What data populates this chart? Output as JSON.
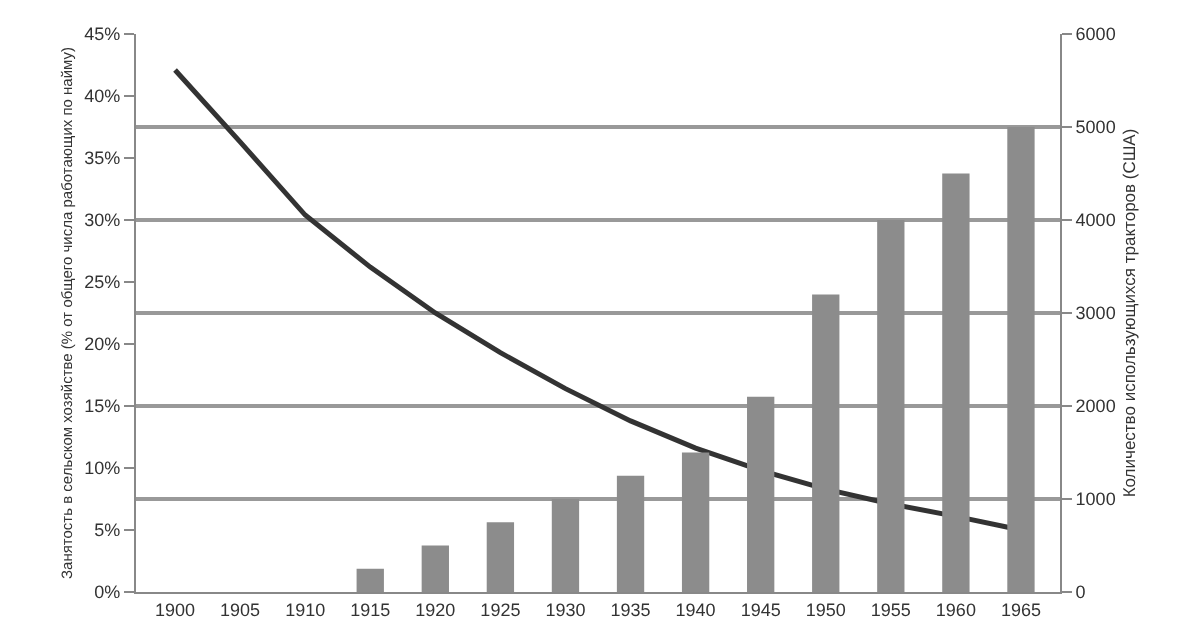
{
  "chart_data": {
    "type": "bar",
    "categories": [
      "1900",
      "1905",
      "1910",
      "1915",
      "1920",
      "1925",
      "1930",
      "1935",
      "1940",
      "1945",
      "1950",
      "1955",
      "1960",
      "1965"
    ],
    "ylabel": "Занятость в сельском хозяйстве (% от общего числа работающих по найму)",
    "y2label": "Количество использующихся тракторов (США)",
    "series": [
      {
        "axis": "y2",
        "color": "#8c8c8c",
        "values": [
          0,
          0,
          0,
          250,
          500,
          750,
          1000,
          1250,
          1500,
          2100,
          3200,
          4000,
          4500,
          5000
        ]
      },
      {
        "type": "line",
        "axis": "y",
        "color": "#333333",
        "marker": "none",
        "line_style": "solid",
        "values": [
          42.1,
          36.3,
          30.4,
          26.2,
          22.5,
          19.3,
          16.4,
          13.8,
          11.6,
          9.8,
          8.3,
          7.1,
          6.1,
          5.0
        ]
      }
    ],
    "ylim": [
      0,
      45
    ],
    "yticks": [
      {
        "value": 0,
        "label": "0%"
      },
      {
        "value": 5,
        "label": "5%"
      },
      {
        "value": 10,
        "label": "10%"
      },
      {
        "value": 15,
        "label": "15%"
      },
      {
        "value": 20,
        "label": "20%"
      },
      {
        "value": 25,
        "label": "25%"
      },
      {
        "value": 30,
        "label": "30%"
      },
      {
        "value": 35,
        "label": "35%"
      },
      {
        "value": 40,
        "label": "40%"
      },
      {
        "value": 45,
        "label": "45%"
      }
    ],
    "y2lim": [
      0,
      6000
    ],
    "y2ticks": [
      0,
      1000,
      2000,
      3000,
      4000,
      5000,
      6000
    ],
    "grid": "y2"
  }
}
